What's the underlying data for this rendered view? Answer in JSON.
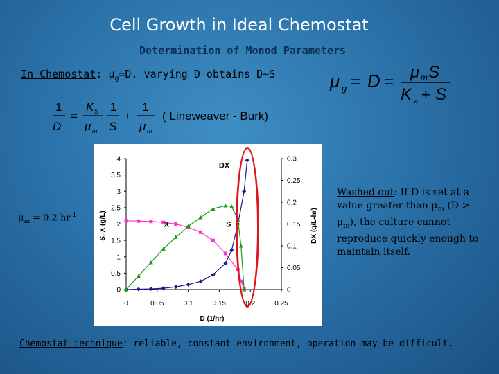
{
  "slide": {
    "title": "Cell Growth in Ideal Chemostat",
    "subtitle": "Determination of Monod Parameters",
    "line1": {
      "prefix": "In Chemostat",
      "colon": ":",
      "mu": "μ",
      "mu_sub": "g",
      "rest": "=D, varying D obtains D~S"
    },
    "equation_right": {
      "mu": "μ",
      "g": "g",
      "eq1": "=",
      "D": "D",
      "eq2": "=",
      "num_mu": "μ",
      "num_m": "m",
      "num_S": "S",
      "den_K": "K",
      "den_s": "s",
      "den_plus": "+",
      "den_S": "S"
    },
    "equation_lb": {
      "one_a": "1",
      "D": "D",
      "eq": "=",
      "K": "K",
      "Ks": "S",
      "mu_a": "μ",
      "m_a": "m",
      "one_b": "1",
      "S": "S",
      "plus": "+",
      "one_c": "1",
      "mu_b": "μ",
      "m_b": "m",
      "label": "( Lineweaver - Burk)"
    },
    "mu_label": {
      "mu": "μ",
      "m": "m",
      "value": " = 0.2 hr",
      "exp": "-1"
    },
    "washed_out": {
      "title": "Washed out",
      "text1": ": If D is set at a value greater than μ",
      "sub1": "m",
      "text2": " (D > μ",
      "sub2": "m",
      "text3": "), the culture cannot reproduce quickly enough to maintain itself."
    },
    "technique": {
      "title": "Chemostat technique",
      "text": ": reliable, constant environment, operation may be difficult."
    }
  },
  "chart_data": {
    "type": "line",
    "xlabel": "D (1/hr)",
    "ylabel_left": "S, X (g/L)",
    "ylabel_right": "DX (g/L-hr)",
    "xlim": [
      0,
      0.25
    ],
    "ylim_left": [
      0,
      4
    ],
    "ylim_right": [
      0,
      0.3
    ],
    "x_ticks": [
      "0",
      "0.05",
      "0.1",
      "0.15",
      "0.2",
      "0.25"
    ],
    "y_left_ticks": [
      "0",
      "0.5",
      "1",
      "1.5",
      "2",
      "2.5",
      "3",
      "3.5",
      "4"
    ],
    "y_right_ticks": [
      "0",
      "0.05",
      "0.1",
      "0.15",
      "0.2",
      "0.25",
      "0.3"
    ],
    "series": [
      {
        "name": "X",
        "axis": "left",
        "color": "#ff33cc",
        "marker": "square",
        "x": [
          0,
          0.02,
          0.04,
          0.06,
          0.08,
          0.1,
          0.12,
          0.14,
          0.16,
          0.18,
          0.185,
          0.19
        ],
        "y": [
          2.1,
          2.09,
          2.08,
          2.05,
          2.0,
          1.9,
          1.75,
          1.5,
          1.1,
          0.6,
          0.25,
          0.02
        ]
      },
      {
        "name": "S",
        "axis": "left",
        "color": "#1a1a8c",
        "marker": "diamond",
        "x": [
          0,
          0.02,
          0.04,
          0.06,
          0.08,
          0.1,
          0.12,
          0.14,
          0.16,
          0.17,
          0.18,
          0.19,
          0.195
        ],
        "y": [
          0,
          0.01,
          0.02,
          0.04,
          0.08,
          0.15,
          0.25,
          0.45,
          0.8,
          1.2,
          2.0,
          3.0,
          3.95
        ]
      },
      {
        "name": "DX",
        "axis": "right",
        "color": "#1a9a1a",
        "marker": "triangle",
        "x": [
          0,
          0.02,
          0.04,
          0.06,
          0.08,
          0.1,
          0.12,
          0.14,
          0.16,
          0.17,
          0.18,
          0.185,
          0.19
        ],
        "y": [
          0,
          0.031,
          0.062,
          0.093,
          0.12,
          0.145,
          0.165,
          0.185,
          0.192,
          0.19,
          0.16,
          0.1,
          0.0
        ]
      }
    ],
    "annotations": [
      {
        "text": "DX",
        "x": 0.158,
        "y": 3.8
      },
      {
        "text": "X",
        "x": 0.065,
        "y": 2.0
      },
      {
        "text": "S",
        "x": 0.165,
        "y": 2.0
      }
    ]
  },
  "colors": {
    "highlight_oval": "#e0141c",
    "title": "#ffffff",
    "subtitle": "#0a2f55"
  }
}
